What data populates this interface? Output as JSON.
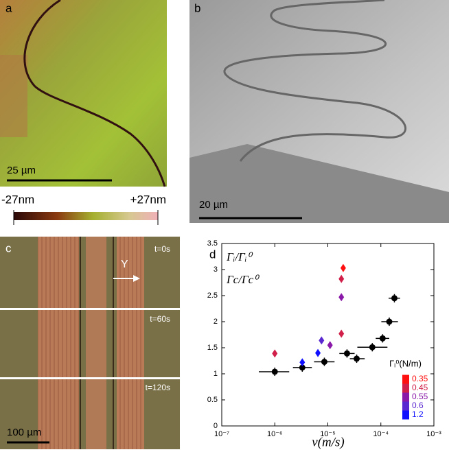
{
  "panels": {
    "a": {
      "label": "a",
      "scale_bar": "25 µm",
      "colorbar_min": "-27nm",
      "colorbar_max": "+27nm"
    },
    "b": {
      "label": "b",
      "scale_bar": "20 µm"
    },
    "c": {
      "label": "c",
      "frames": [
        "t=0s",
        "t=60s",
        "t=120s"
      ],
      "arrow": "Y",
      "scale_bar": "100 µm"
    },
    "d": {
      "label": "d"
    }
  },
  "chart_data": {
    "type": "scatter",
    "xlabel": "v(m/s)",
    "xlog": true,
    "xlim": [
      1e-07,
      0.001
    ],
    "xticks": [
      {
        "value": 1e-07,
        "label": "10⁻⁷"
      },
      {
        "value": 1e-06,
        "label": "10⁻⁶"
      },
      {
        "value": 1e-05,
        "label": "10⁻⁵"
      },
      {
        "value": 0.0001,
        "label": "10⁻⁴"
      },
      {
        "value": 0.001,
        "label": "10⁻³"
      }
    ],
    "ylim": [
      0,
      3.5
    ],
    "yticks": [
      0,
      0.5,
      1,
      1.5,
      2,
      2.5,
      3,
      3.5
    ],
    "annotations": [
      "Γᵢ/Γᵢ⁰",
      "Γc/Γc⁰"
    ],
    "colorbar_title": "Γᵢ⁰(N/m)",
    "series": [
      {
        "color": "#000000",
        "marker": "circle",
        "x": [
          1e-06,
          3.3e-06,
          8.6e-06,
          2.3e-05,
          3.5e-05,
          6.9e-05,
          0.000108,
          0.000144,
          0.00018
        ],
        "values": [
          1.04,
          1.12,
          1.23,
          1.39,
          1.29,
          1.51,
          1.68,
          2.0,
          2.45
        ],
        "x_low": [
          5e-07,
          2.2e-06,
          5.5e-06,
          1.65e-05,
          2.6e-05,
          3.6e-05,
          8e-05,
          0.000102,
          0.00014
        ],
        "x_high": [
          1.87e-06,
          5e-06,
          1.34e-05,
          3.2e-05,
          4.96e-05,
          0.000133,
          0.000144,
          0.00021,
          0.00023
        ],
        "yerr": [
          0.08,
          0.08,
          0.08,
          0.08,
          0.08,
          0.08,
          0.08,
          0.08,
          0.08
        ]
      },
      {
        "name": "0.35",
        "color": "#ff1010",
        "marker": "diamond",
        "x": [
          1.95e-05
        ],
        "values": [
          3.03
        ]
      },
      {
        "name": "0.45",
        "color": "#d0204a",
        "marker": "diamond",
        "x": [
          1e-06,
          1.8e-05,
          1.8e-05
        ],
        "values": [
          1.39,
          2.82,
          1.77
        ]
      },
      {
        "name": "0.55",
        "color": "#8a18a8",
        "marker": "diamond",
        "x": [
          1.1e-05,
          1.8e-05
        ],
        "values": [
          1.55,
          2.47
        ]
      },
      {
        "name": "0.6",
        "color": "#5a28d0",
        "marker": "diamond",
        "x": [
          7.6e-06
        ],
        "values": [
          1.64
        ]
      },
      {
        "name": "1.2",
        "color": "#1010ff",
        "marker": "diamond",
        "x": [
          3.3e-06,
          6.5e-06
        ],
        "values": [
          1.22,
          1.4
        ]
      }
    ]
  }
}
